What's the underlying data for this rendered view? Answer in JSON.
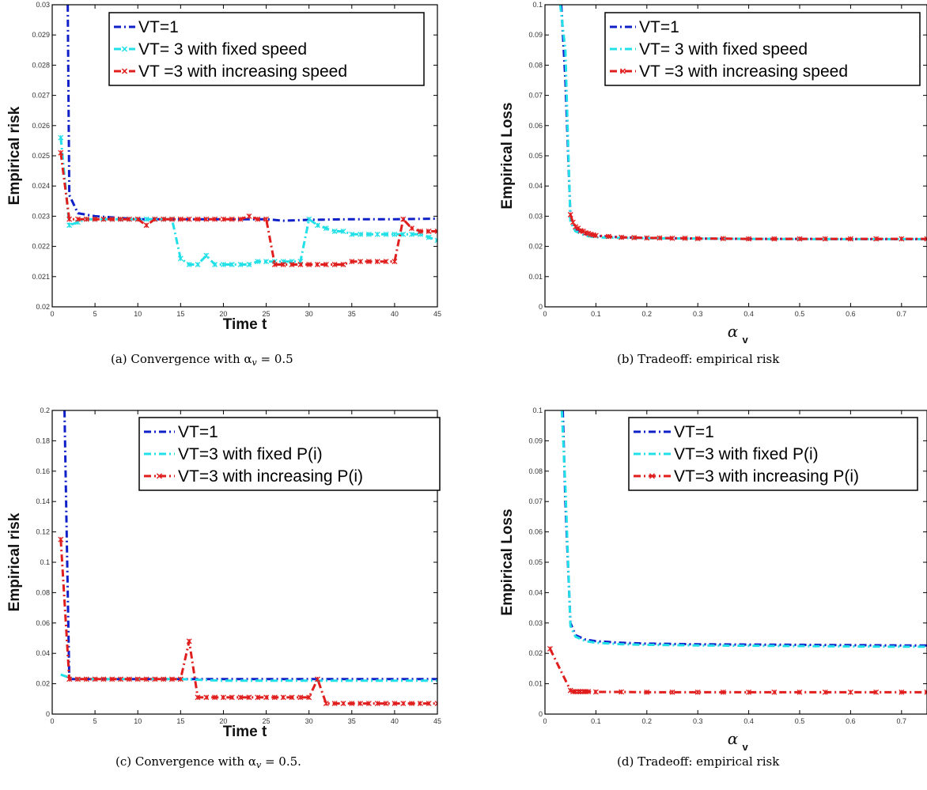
{
  "colors": {
    "vt1": "#1020c8",
    "fixed": "#22e0e8",
    "increasing": "#e01e1e",
    "frame": "#000000"
  },
  "chart_data": [
    {
      "id": "a",
      "type": "line",
      "caption": "(a) Convergence with α",
      "caption_sub": "v",
      "caption_tail": " = 0.5",
      "xlabel": "Time t",
      "ylabel": "Empirical risk",
      "xlabel_sub": "",
      "xlim": [
        0,
        45
      ],
      "ylim": [
        0.02,
        0.03
      ],
      "xticks": [
        0,
        5,
        10,
        15,
        20,
        25,
        30,
        35,
        40,
        45
      ],
      "xtick_labels": [
        "0",
        "5",
        "10",
        "15",
        "20",
        "25",
        "30",
        "35",
        "40",
        "45"
      ],
      "yticks": [
        0.02,
        0.021,
        0.022,
        0.023,
        0.024,
        0.025,
        0.026,
        0.027,
        0.028,
        0.029,
        0.03
      ],
      "ytick_labels": [
        "0.02",
        "0.021",
        "0.022",
        "0.023",
        "0.024",
        "0.025",
        "0.026",
        "0.027",
        "0.028",
        "0.029",
        "0.03"
      ],
      "grid": false,
      "legend_position": "top-right",
      "series": [
        {
          "name": "VT=1",
          "color_key": "vt1",
          "markers": false,
          "x": [
            1.8,
            2,
            3,
            5,
            10,
            15,
            20,
            25,
            27,
            30,
            35,
            40,
            45
          ],
          "y": [
            0.0305,
            0.0237,
            0.0231,
            0.023,
            0.0229,
            0.0229,
            0.0229,
            0.0229,
            0.02285,
            0.02288,
            0.0229,
            0.0229,
            0.02292
          ]
        },
        {
          "name": "VT= 3 with fixed speed",
          "color_key": "fixed",
          "markers": true,
          "x": [
            1,
            2,
            3,
            4,
            5,
            6,
            7,
            8,
            9,
            10,
            11,
            12,
            13,
            14,
            15,
            16,
            17,
            18,
            19,
            20,
            21,
            22,
            23,
            24,
            25,
            26,
            27,
            28,
            29,
            30,
            31,
            32,
            33,
            34,
            35,
            36,
            37,
            38,
            39,
            40,
            41,
            42,
            43,
            44,
            45
          ],
          "y": [
            0.0256,
            0.0227,
            0.0228,
            0.0229,
            0.0229,
            0.0229,
            0.0229,
            0.0229,
            0.0229,
            0.0229,
            0.0229,
            0.0229,
            0.0229,
            0.0229,
            0.0216,
            0.0214,
            0.0214,
            0.0217,
            0.0214,
            0.0214,
            0.0214,
            0.0214,
            0.0214,
            0.0215,
            0.0215,
            0.0215,
            0.0215,
            0.0215,
            0.0215,
            0.0229,
            0.0227,
            0.0226,
            0.0225,
            0.0225,
            0.0224,
            0.0224,
            0.0224,
            0.0224,
            0.0224,
            0.0224,
            0.0224,
            0.0224,
            0.0224,
            0.0223,
            0.0222
          ]
        },
        {
          "name": "VT =3 with increasing speed",
          "color_key": "increasing",
          "markers": true,
          "x": [
            1,
            2,
            3,
            4,
            5,
            6,
            7,
            8,
            9,
            10,
            11,
            12,
            13,
            14,
            15,
            16,
            17,
            18,
            19,
            20,
            21,
            22,
            23,
            24,
            25,
            26,
            27,
            28,
            29,
            30,
            31,
            32,
            33,
            34,
            35,
            36,
            37,
            38,
            39,
            40,
            41,
            42,
            43,
            44,
            45
          ],
          "y": [
            0.0251,
            0.0229,
            0.0229,
            0.0229,
            0.0229,
            0.0229,
            0.0229,
            0.0229,
            0.0229,
            0.0229,
            0.0227,
            0.0229,
            0.0229,
            0.0229,
            0.0229,
            0.0229,
            0.0229,
            0.0229,
            0.0229,
            0.0229,
            0.0229,
            0.0229,
            0.023,
            0.0229,
            0.0229,
            0.0214,
            0.0214,
            0.0214,
            0.0214,
            0.0214,
            0.0214,
            0.0214,
            0.0214,
            0.0214,
            0.0215,
            0.0215,
            0.0215,
            0.0215,
            0.0215,
            0.0215,
            0.0229,
            0.0226,
            0.0225,
            0.0225,
            0.0225
          ]
        }
      ]
    },
    {
      "id": "b",
      "type": "line",
      "caption": "(b) Tradeoff: empirical risk",
      "caption_sub": "",
      "caption_tail": "",
      "xlabel": "α",
      "xlabel_sub": "v",
      "ylabel": "Empirical Loss",
      "xlim": [
        0,
        0.75
      ],
      "ylim": [
        0,
        0.1
      ],
      "xticks": [
        0,
        0.1,
        0.2,
        0.3,
        0.4,
        0.5,
        0.6,
        0.7
      ],
      "xtick_labels": [
        "0",
        "0.1",
        "0.2",
        "0.3",
        "0.4",
        "0.5",
        "0.6",
        "0.7"
      ],
      "yticks": [
        0,
        0.01,
        0.02,
        0.03,
        0.04,
        0.05,
        0.06,
        0.07,
        0.08,
        0.09,
        0.1
      ],
      "ytick_labels": [
        "0",
        "0.01",
        "0.02",
        "0.03",
        "0.04",
        "0.05",
        "0.06",
        "0.07",
        "0.08",
        "0.09",
        "0.1"
      ],
      "grid": false,
      "legend_position": "top-right",
      "series": [
        {
          "name": "VT=1",
          "color_key": "vt1",
          "markers": false,
          "x": [
            0.032,
            0.04,
            0.05,
            0.06,
            0.08,
            0.1,
            0.15,
            0.2,
            0.3,
            0.4,
            0.5,
            0.6,
            0.7,
            0.75
          ],
          "y": [
            0.1,
            0.075,
            0.03,
            0.026,
            0.024,
            0.0235,
            0.023,
            0.0228,
            0.0226,
            0.0225,
            0.0225,
            0.0224,
            0.0224,
            0.0224
          ]
        },
        {
          "name": "VT= 3 with fixed speed",
          "color_key": "fixed",
          "markers": false,
          "x": [
            0.03,
            0.04,
            0.05,
            0.06,
            0.08,
            0.1,
            0.15,
            0.2,
            0.3,
            0.4,
            0.5,
            0.6,
            0.7,
            0.75
          ],
          "y": [
            0.1,
            0.085,
            0.028,
            0.025,
            0.0235,
            0.023,
            0.0228,
            0.0227,
            0.0226,
            0.0225,
            0.0224,
            0.0224,
            0.0224,
            0.0224
          ]
        },
        {
          "name": "VT =3 with increasing speed",
          "color_key": "increasing",
          "markers": true,
          "x": [
            0.05,
            0.055,
            0.06,
            0.065,
            0.07,
            0.075,
            0.08,
            0.085,
            0.09,
            0.095,
            0.1,
            0.125,
            0.15,
            0.175,
            0.2,
            0.225,
            0.25,
            0.275,
            0.3,
            0.35,
            0.4,
            0.45,
            0.5,
            0.55,
            0.6,
            0.65,
            0.7,
            0.75
          ],
          "y": [
            0.0305,
            0.028,
            0.0265,
            0.026,
            0.0252,
            0.025,
            0.0245,
            0.0243,
            0.024,
            0.0238,
            0.0236,
            0.0233,
            0.023,
            0.0229,
            0.0228,
            0.0228,
            0.0227,
            0.0227,
            0.0226,
            0.0226,
            0.0225,
            0.0225,
            0.0225,
            0.0225,
            0.0225,
            0.0225,
            0.0225,
            0.0225
          ]
        }
      ]
    },
    {
      "id": "c",
      "type": "line",
      "caption": "(c) Convergence with α",
      "caption_sub": "v",
      "caption_tail": " = 0.5.",
      "xlabel": "Time t",
      "xlabel_sub": "",
      "ylabel": "Empirical risk",
      "xlim": [
        0,
        45
      ],
      "ylim": [
        0,
        0.2
      ],
      "xticks": [
        0,
        5,
        10,
        15,
        20,
        25,
        30,
        35,
        40,
        45
      ],
      "xtick_labels": [
        "0",
        "5",
        "10",
        "15",
        "20",
        "25",
        "30",
        "35",
        "40",
        "45"
      ],
      "yticks": [
        0,
        0.02,
        0.04,
        0.06,
        0.08,
        0.1,
        0.12,
        0.14,
        0.16,
        0.18,
        0.2
      ],
      "ytick_labels": [
        "0",
        "0.02",
        "0.04",
        "0.06",
        "0.08",
        "0.1",
        "0.12",
        "0.14",
        "0.16",
        "0.18",
        "0.2"
      ],
      "grid": false,
      "legend_position": "top-right",
      "series": [
        {
          "name": "VT=1",
          "color_key": "vt1",
          "markers": false,
          "x": [
            1.4,
            2,
            3,
            5,
            10,
            15,
            20,
            25,
            30,
            35,
            40,
            45
          ],
          "y": [
            0.21,
            0.023,
            0.023,
            0.023,
            0.023,
            0.023,
            0.023,
            0.023,
            0.023,
            0.023,
            0.023,
            0.023
          ]
        },
        {
          "name": "VT=3 with fixed P(i)",
          "color_key": "fixed",
          "markers": false,
          "x": [
            1,
            2,
            3,
            5,
            10,
            15,
            20,
            25,
            30,
            35,
            40,
            45
          ],
          "y": [
            0.026,
            0.024,
            0.023,
            0.023,
            0.023,
            0.023,
            0.022,
            0.022,
            0.022,
            0.022,
            0.022,
            0.022
          ]
        },
        {
          "name": "VT=3 with increasing P(i)",
          "color_key": "increasing",
          "markers": true,
          "x": [
            1,
            2,
            3,
            4,
            5,
            6,
            7,
            8,
            9,
            10,
            11,
            12,
            13,
            14,
            15,
            16,
            17,
            18,
            19,
            20,
            21,
            22,
            23,
            24,
            25,
            26,
            27,
            28,
            29,
            30,
            31,
            32,
            33,
            34,
            35,
            36,
            37,
            38,
            39,
            40,
            41,
            42,
            43,
            44,
            45
          ],
          "y": [
            0.115,
            0.023,
            0.023,
            0.023,
            0.023,
            0.023,
            0.023,
            0.023,
            0.023,
            0.023,
            0.023,
            0.023,
            0.023,
            0.023,
            0.023,
            0.048,
            0.011,
            0.011,
            0.011,
            0.011,
            0.011,
            0.011,
            0.011,
            0.011,
            0.011,
            0.011,
            0.011,
            0.011,
            0.011,
            0.011,
            0.023,
            0.007,
            0.007,
            0.007,
            0.007,
            0.007,
            0.007,
            0.007,
            0.007,
            0.007,
            0.007,
            0.007,
            0.007,
            0.007,
            0.007
          ]
        }
      ]
    },
    {
      "id": "d",
      "type": "line",
      "caption": "(d) Tradeoff: empirical risk",
      "caption_sub": "",
      "caption_tail": "",
      "xlabel": "α",
      "xlabel_sub": "v",
      "ylabel": "Empirical Loss",
      "xlim": [
        0,
        0.75
      ],
      "ylim": [
        0,
        0.1
      ],
      "xticks": [
        0,
        0.1,
        0.2,
        0.3,
        0.4,
        0.5,
        0.6,
        0.7
      ],
      "xtick_labels": [
        "0",
        "0.1",
        "0.2",
        "0.3",
        "0.4",
        "0.5",
        "0.6",
        "0.7"
      ],
      "yticks": [
        0,
        0.01,
        0.02,
        0.03,
        0.04,
        0.05,
        0.06,
        0.07,
        0.08,
        0.09,
        0.1
      ],
      "ytick_labels": [
        "0",
        "0.01",
        "0.02",
        "0.03",
        "0.04",
        "0.05",
        "0.06",
        "0.07",
        "0.08",
        "0.09",
        "0.1"
      ],
      "grid": false,
      "legend_position": "top-right",
      "series": [
        {
          "name": "VT=1",
          "color_key": "vt1",
          "markers": false,
          "x": [
            0.035,
            0.04,
            0.05,
            0.06,
            0.08,
            0.1,
            0.15,
            0.2,
            0.3,
            0.4,
            0.5,
            0.6,
            0.7,
            0.75
          ],
          "y": [
            0.1,
            0.07,
            0.03,
            0.026,
            0.0245,
            0.024,
            0.0235,
            0.0232,
            0.023,
            0.0229,
            0.0228,
            0.0227,
            0.0226,
            0.0226
          ]
        },
        {
          "name": "VT=3 with fixed P(i)",
          "color_key": "fixed",
          "markers": false,
          "x": [
            0.033,
            0.04,
            0.05,
            0.06,
            0.08,
            0.1,
            0.15,
            0.2,
            0.3,
            0.4,
            0.5,
            0.6,
            0.7,
            0.75
          ],
          "y": [
            0.1,
            0.075,
            0.029,
            0.0255,
            0.024,
            0.0235,
            0.023,
            0.0228,
            0.0226,
            0.0225,
            0.0224,
            0.0223,
            0.0222,
            0.0222
          ]
        },
        {
          "name": "VT=3 with increasing P(i)",
          "color_key": "increasing",
          "markers": true,
          "x": [
            0.01,
            0.05,
            0.055,
            0.06,
            0.065,
            0.07,
            0.075,
            0.08,
            0.085,
            0.1,
            0.15,
            0.2,
            0.25,
            0.3,
            0.35,
            0.4,
            0.45,
            0.5,
            0.55,
            0.6,
            0.65,
            0.7,
            0.75
          ],
          "y": [
            0.0215,
            0.0078,
            0.0074,
            0.0074,
            0.0074,
            0.0074,
            0.0074,
            0.0074,
            0.0074,
            0.0073,
            0.0073,
            0.0072,
            0.0072,
            0.0072,
            0.0072,
            0.0072,
            0.0072,
            0.0072,
            0.0072,
            0.0072,
            0.0072,
            0.0072,
            0.0072
          ]
        }
      ]
    }
  ]
}
